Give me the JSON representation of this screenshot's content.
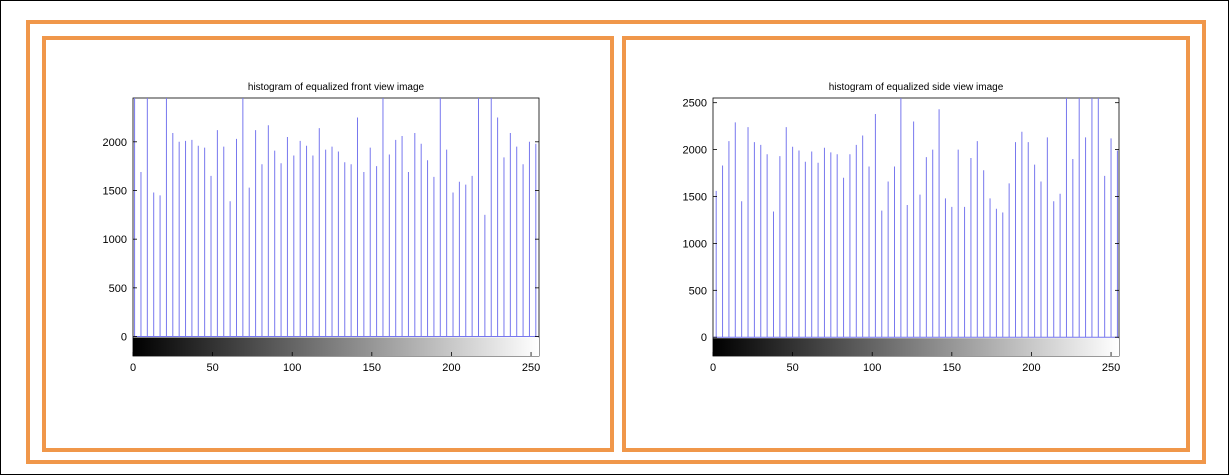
{
  "chart_data": [
    {
      "type": "bar",
      "title": "histogram of equalized front view image",
      "xlabel": "",
      "ylabel": "",
      "xlim": [
        0,
        255
      ],
      "ylim": [
        -200,
        2450
      ],
      "xticks": [
        "0",
        "50",
        "100",
        "150",
        "200",
        "250"
      ],
      "yticks": [
        "0",
        "500",
        "1000",
        "1500",
        "2000"
      ],
      "bar_color": "#7777ee",
      "colorbar": "grayscale",
      "x": [
        1,
        5,
        9,
        13,
        17,
        21,
        25,
        29,
        33,
        37,
        41,
        45,
        49,
        53,
        57,
        61,
        65,
        69,
        73,
        77,
        81,
        85,
        89,
        93,
        97,
        101,
        105,
        109,
        113,
        117,
        121,
        125,
        129,
        133,
        137,
        141,
        145,
        149,
        153,
        157,
        161,
        165,
        169,
        173,
        177,
        181,
        185,
        189,
        193,
        197,
        201,
        205,
        209,
        213,
        217,
        221,
        225,
        229,
        233,
        237,
        241,
        245,
        249,
        253
      ],
      "values": [
        2450,
        1690,
        2450,
        1480,
        1450,
        2450,
        2090,
        2000,
        2010,
        2020,
        1960,
        1940,
        1650,
        2120,
        1950,
        1390,
        2030,
        2450,
        1530,
        2120,
        1770,
        2170,
        1910,
        1780,
        2050,
        1860,
        2010,
        1960,
        1860,
        2140,
        1920,
        1950,
        1900,
        1790,
        1770,
        2250,
        1690,
        1940,
        1750,
        2450,
        1870,
        2020,
        2060,
        1690,
        2090,
        1980,
        1810,
        1640,
        2450,
        1920,
        1480,
        1590,
        1560,
        1650,
        2450,
        1250,
        2450,
        2250,
        1840,
        2090,
        1950,
        1770,
        2000,
        1980
      ]
    },
    {
      "type": "bar",
      "title": "histogram of equalized side view image",
      "xlabel": "",
      "ylabel": "",
      "xlim": [
        0,
        255
      ],
      "ylim": [
        -200,
        2550
      ],
      "xticks": [
        "0",
        "50",
        "100",
        "150",
        "200",
        "250"
      ],
      "yticks": [
        "0",
        "500",
        "1000",
        "1500",
        "2000",
        "2500"
      ],
      "bar_color": "#7777ee",
      "colorbar": "grayscale",
      "x": [
        2,
        6,
        10,
        14,
        18,
        22,
        26,
        30,
        34,
        38,
        42,
        46,
        50,
        54,
        58,
        62,
        66,
        70,
        74,
        78,
        82,
        86,
        90,
        94,
        98,
        102,
        106,
        110,
        114,
        118,
        122,
        126,
        130,
        134,
        138,
        142,
        146,
        150,
        154,
        158,
        162,
        166,
        170,
        174,
        178,
        182,
        186,
        190,
        194,
        198,
        202,
        206,
        210,
        214,
        218,
        222,
        226,
        230,
        234,
        238,
        242,
        246,
        250,
        254
      ],
      "values": [
        1560,
        1830,
        2090,
        2290,
        1450,
        2240,
        2080,
        2050,
        1950,
        1340,
        1930,
        2240,
        2030,
        1990,
        1870,
        1980,
        1860,
        2020,
        1970,
        1950,
        1700,
        1950,
        2050,
        2150,
        1820,
        2380,
        1350,
        1660,
        1820,
        2550,
        1410,
        2300,
        1520,
        1920,
        2000,
        2430,
        1480,
        1390,
        2000,
        1390,
        1910,
        2090,
        1780,
        1480,
        1370,
        1330,
        1640,
        2080,
        2190,
        2080,
        1840,
        1660,
        2130,
        1450,
        1530,
        2550,
        1900,
        2550,
        2130,
        2550,
        2550,
        1720,
        2120,
        1990
      ]
    }
  ]
}
